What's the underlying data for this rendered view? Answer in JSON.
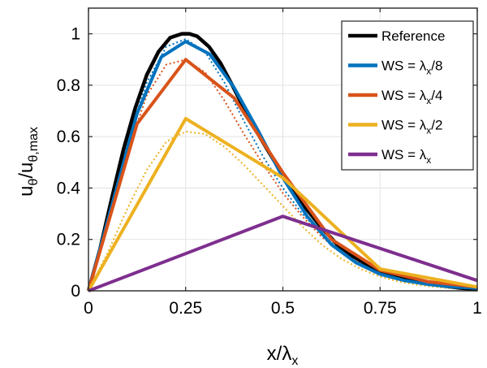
{
  "chart_data": {
    "type": "line",
    "xlabel": {
      "base": "x/λ",
      "sub": "x"
    },
    "ylabel": {
      "base1": "u",
      "sub1": "θ",
      "base2": "/u",
      "sub2": "θ,max"
    },
    "xlim": [
      0,
      1
    ],
    "ylim": [
      0,
      1.1
    ],
    "xticks": [
      0,
      0.25,
      0.5,
      0.75,
      1
    ],
    "xtick_labels": [
      "0",
      "0.25",
      "0.5",
      "0.75",
      "1"
    ],
    "yticks": [
      0,
      0.2,
      0.4,
      0.6,
      0.8,
      1
    ],
    "ytick_labels": [
      "0",
      "0.2",
      "0.4",
      "0.6",
      "0.8",
      "1"
    ],
    "grid": true,
    "legend_position": "top-right",
    "series": [
      {
        "name": "Reference",
        "legend_base": "Reference",
        "legend_sub": "",
        "legend_suffix": "",
        "color": "#000000",
        "style": "solid",
        "in_legend": true,
        "x": [
          0,
          0.03,
          0.06,
          0.09,
          0.12,
          0.15,
          0.18,
          0.21,
          0.24,
          0.26,
          0.28,
          0.31,
          0.34,
          0.37,
          0.4,
          0.44,
          0.48,
          0.52,
          0.56,
          0.6,
          0.64,
          0.68,
          0.72,
          0.76,
          0.8,
          0.85,
          0.9,
          0.95,
          1
        ],
        "y": [
          0,
          0.165,
          0.36,
          0.55,
          0.71,
          0.84,
          0.93,
          0.985,
          1.0,
          1.0,
          0.99,
          0.95,
          0.885,
          0.8,
          0.71,
          0.6,
          0.5,
          0.41,
          0.32,
          0.245,
          0.18,
          0.135,
          0.1,
          0.07,
          0.05,
          0.035,
          0.022,
          0.012,
          0.005
        ]
      },
      {
        "name": "WS = λx/8",
        "legend_base": "WS = λ",
        "legend_sub": "x",
        "legend_suffix": "/8",
        "color": "#0072BD",
        "style": "solid",
        "in_legend": true,
        "x": [
          0,
          0.125,
          0.1875,
          0.25,
          0.3125,
          0.375,
          0.4375,
          0.5,
          0.5625,
          0.625,
          0.6875,
          0.75,
          0.8125,
          0.875,
          0.9375,
          1
        ],
        "y": [
          0,
          0.69,
          0.91,
          0.97,
          0.92,
          0.79,
          0.62,
          0.44,
          0.29,
          0.18,
          0.11,
          0.065,
          0.04,
          0.025,
          0.015,
          0.01
        ]
      },
      {
        "name": "WS = λx/4",
        "legend_base": "WS = λ",
        "legend_sub": "x",
        "legend_suffix": "/4",
        "color": "#D95319",
        "style": "solid",
        "in_legend": true,
        "x": [
          0,
          0.125,
          0.25,
          0.375,
          0.5,
          0.625,
          0.75,
          0.875,
          1
        ],
        "y": [
          0,
          0.65,
          0.9,
          0.75,
          0.46,
          0.2,
          0.08,
          0.035,
          0.015
        ]
      },
      {
        "name": "WS = λx/2",
        "legend_base": "WS = λ",
        "legend_sub": "x",
        "legend_suffix": "/2",
        "color": "#EDB120",
        "style": "solid",
        "in_legend": true,
        "x": [
          0,
          0.25,
          0.5,
          0.75,
          1
        ],
        "y": [
          0,
          0.67,
          0.44,
          0.085,
          0.015
        ]
      },
      {
        "name": "WS = λx",
        "legend_base": "WS = λ",
        "legend_sub": "x",
        "legend_suffix": "",
        "color": "#7E2F8E",
        "style": "solid",
        "in_legend": true,
        "x": [
          0,
          0.5,
          1
        ],
        "y": [
          0,
          0.29,
          0.04
        ]
      },
      {
        "name": "",
        "color": "#0072BD",
        "style": "dotted",
        "in_legend": false,
        "x": [
          0,
          0.05,
          0.1,
          0.15,
          0.2,
          0.25,
          0.3,
          0.35,
          0.4,
          0.45,
          0.5,
          0.55,
          0.6,
          0.65,
          0.7,
          0.75,
          0.8,
          0.85,
          0.9,
          0.95,
          1
        ],
        "y": [
          0,
          0.29,
          0.58,
          0.81,
          0.95,
          0.98,
          0.93,
          0.81,
          0.66,
          0.52,
          0.4,
          0.3,
          0.22,
          0.155,
          0.11,
          0.075,
          0.05,
          0.033,
          0.022,
          0.013,
          0.007
        ]
      },
      {
        "name": "",
        "color": "#D95319",
        "style": "dotted",
        "in_legend": false,
        "x": [
          0,
          0.05,
          0.1,
          0.15,
          0.2,
          0.25,
          0.3,
          0.35,
          0.4,
          0.45,
          0.5,
          0.55,
          0.6,
          0.65,
          0.7,
          0.75,
          0.8,
          0.85,
          0.9,
          0.95,
          1
        ],
        "y": [
          0,
          0.27,
          0.54,
          0.76,
          0.88,
          0.9,
          0.85,
          0.74,
          0.61,
          0.49,
          0.38,
          0.29,
          0.21,
          0.15,
          0.105,
          0.072,
          0.048,
          0.032,
          0.021,
          0.013,
          0.007
        ]
      },
      {
        "name": "",
        "color": "#EDB120",
        "style": "dotted",
        "in_legend": false,
        "x": [
          0,
          0.05,
          0.1,
          0.15,
          0.2,
          0.25,
          0.3,
          0.35,
          0.4,
          0.45,
          0.5,
          0.55,
          0.6,
          0.65,
          0.7,
          0.75,
          0.8,
          0.85,
          0.9,
          0.95,
          1
        ],
        "y": [
          0,
          0.15,
          0.32,
          0.47,
          0.58,
          0.62,
          0.61,
          0.56,
          0.49,
          0.41,
          0.33,
          0.25,
          0.18,
          0.125,
          0.085,
          0.055,
          0.035,
          0.022,
          0.014,
          0.008,
          0.004
        ]
      }
    ]
  }
}
